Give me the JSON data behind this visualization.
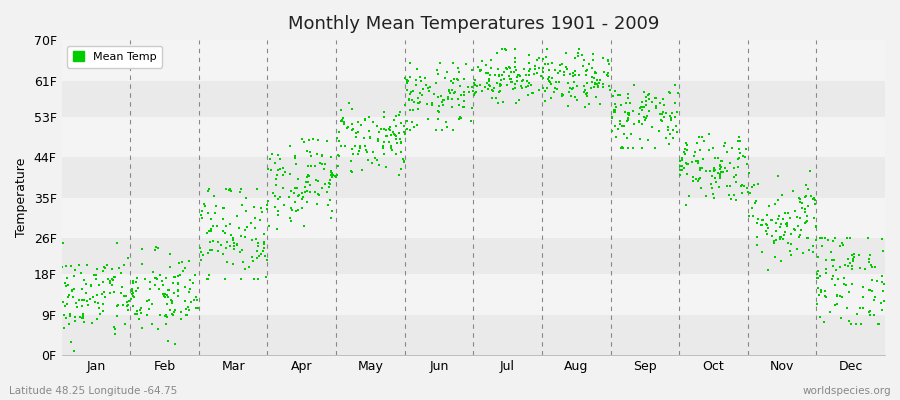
{
  "title": "Monthly Mean Temperatures 1901 - 2009",
  "ylabel": "Temperature",
  "bottom_left_label": "Latitude 48.25 Longitude -64.75",
  "bottom_right_label": "worldspecies.org",
  "dot_color": "#00CC00",
  "legend_label": "Mean Temp",
  "background_color": "#F2F2F2",
  "plot_bg_color": "#F2F2F2",
  "months": [
    "Jan",
    "Feb",
    "Mar",
    "Apr",
    "May",
    "Jun",
    "Jul",
    "Aug",
    "Sep",
    "Oct",
    "Nov",
    "Dec"
  ],
  "yticks": [
    0,
    9,
    18,
    26,
    35,
    44,
    53,
    61,
    70
  ],
  "ytick_labels": [
    "0F",
    "9F",
    "18F",
    "26F",
    "35F",
    "44F",
    "53F",
    "61F",
    "70F"
  ],
  "ylim": [
    0,
    70
  ],
  "seed": 42,
  "monthly_mean": [
    13,
    13,
    27,
    39,
    48,
    57,
    62,
    61,
    53,
    42,
    30,
    17
  ],
  "monthly_std": [
    5,
    5,
    6,
    5,
    4,
    4,
    3,
    3,
    4,
    4,
    5,
    6
  ],
  "monthly_range_min": [
    1,
    1,
    17,
    28,
    40,
    50,
    56,
    54,
    46,
    33,
    19,
    7
  ],
  "monthly_range_max": [
    25,
    26,
    37,
    48,
    56,
    65,
    68,
    68,
    60,
    52,
    42,
    26
  ],
  "n_points": 109,
  "band_colors": [
    "#EBEBEB",
    "#F5F5F5",
    "#EBEBEB",
    "#F5F5F5",
    "#EBEBEB",
    "#F5F5F5",
    "#EBEBEB",
    "#F5F5F5"
  ]
}
